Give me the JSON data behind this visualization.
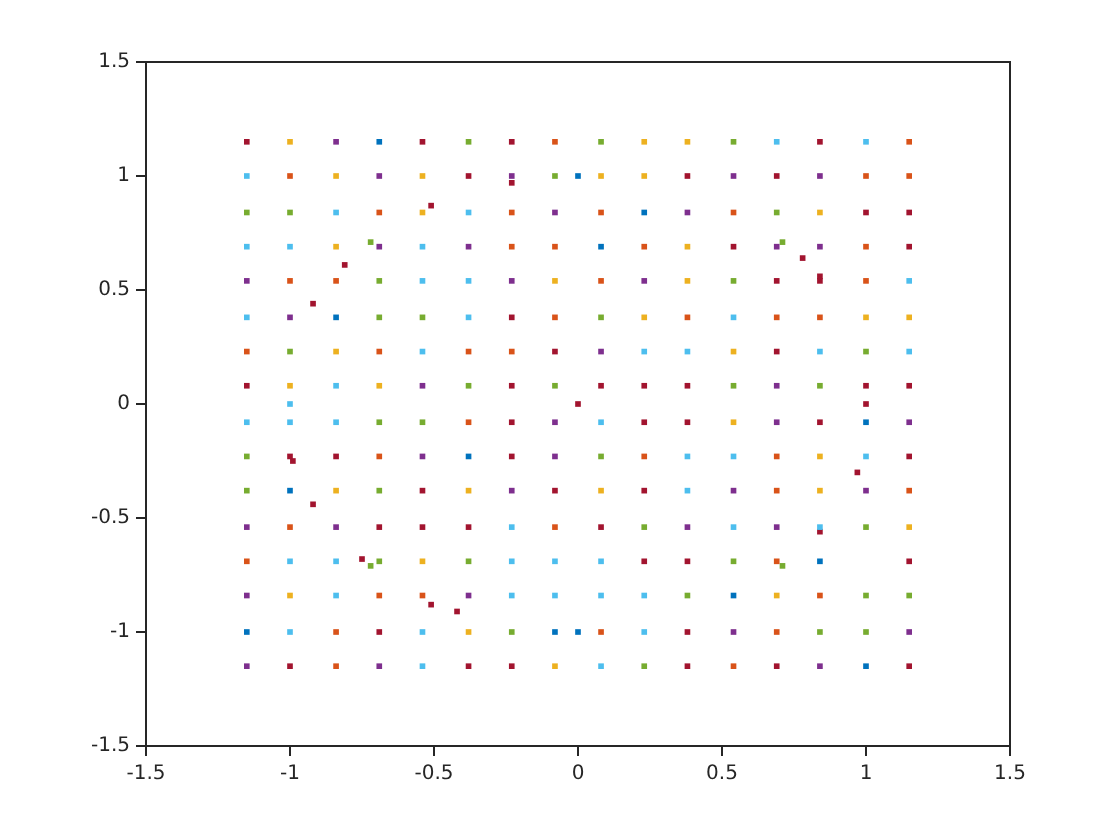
{
  "chart_data": {
    "type": "scatter",
    "marker": "square",
    "xlim": [
      -1.5,
      1.5
    ],
    "ylim": [
      -1.5,
      1.5
    ],
    "xticks": [
      -1.5,
      -1,
      -0.5,
      0,
      0.5,
      1,
      1.5
    ],
    "yticks": [
      -1.5,
      -1,
      -0.5,
      0,
      0.5,
      1,
      1.5
    ],
    "series": [
      {
        "color": "#0072bd",
        "x": [
          -0.69,
          0.23,
          0.08,
          -0.84,
          1.0,
          -0.38,
          -1.0,
          0.84,
          0.54,
          -1.15,
          -0.08,
          1.0,
          0,
          0
        ],
        "values": [
          1.15,
          0.84,
          0.69,
          0.38,
          -0.08,
          -0.23,
          -0.38,
          -0.69,
          -0.84,
          -1.0,
          -1.0,
          -1.15,
          1.0,
          -1.0
        ]
      },
      {
        "color": "#d95319",
        "x": [
          -0.08,
          1.15,
          -1.0,
          1.0,
          1.15,
          -0.69,
          -0.23,
          0.08,
          0.54,
          -0.23,
          -0.08,
          0.23,
          1.0,
          -1.0,
          -0.84,
          0.08,
          1.0,
          -0.08,
          0.38,
          0.69,
          0.84,
          -1.15,
          -0.69,
          -0.38,
          -0.23,
          -0.38,
          -0.69,
          0.23,
          0.69,
          0.69,
          1.15,
          -1.0,
          -0.08,
          -1.15,
          0.69,
          -0.69,
          -0.54,
          0.84,
          -0.84,
          0.08,
          0.69,
          -0.84,
          0.54
        ],
        "values": [
          1.15,
          1.15,
          1.0,
          1.0,
          1.0,
          0.84,
          0.84,
          0.84,
          0.84,
          0.69,
          0.69,
          0.69,
          0.69,
          0.54,
          0.54,
          0.54,
          0.54,
          0.38,
          0.38,
          0.38,
          0.38,
          0.23,
          0.23,
          0.23,
          0.23,
          -0.08,
          -0.23,
          -0.23,
          -0.23,
          -0.38,
          -0.38,
          -0.54,
          -0.54,
          -0.69,
          -0.69,
          -0.84,
          -0.84,
          -0.84,
          -1.0,
          -1.0,
          -1.0,
          -1.15,
          -1.15
        ]
      },
      {
        "color": "#edb120",
        "x": [
          -1.0,
          0.23,
          0.38,
          -0.84,
          -0.54,
          0.08,
          0.23,
          -0.54,
          0.84,
          -0.84,
          0.38,
          -0.08,
          0.38,
          0.23,
          1.0,
          1.15,
          -0.84,
          0.54,
          -1.0,
          -0.69,
          0.54,
          0.84,
          -0.84,
          -0.38,
          0.08,
          0.84,
          1.15,
          -0.54,
          -1.0,
          0.69,
          -0.38,
          -0.08
        ],
        "values": [
          1.15,
          1.15,
          1.15,
          1.0,
          1.0,
          1.0,
          1.0,
          0.84,
          0.84,
          0.69,
          0.69,
          0.54,
          0.54,
          0.38,
          0.38,
          0.38,
          0.23,
          0.23,
          0.08,
          0.08,
          -0.08,
          -0.23,
          -0.38,
          -0.38,
          -0.38,
          -0.38,
          -0.54,
          -0.69,
          -0.84,
          -0.84,
          -1.0,
          -1.15
        ]
      },
      {
        "color": "#7e2f8e",
        "x": [
          -0.84,
          -0.69,
          -0.23,
          0.54,
          0.84,
          -0.08,
          0.38,
          -0.69,
          -0.38,
          0.69,
          0.84,
          -1.15,
          -0.23,
          0.23,
          -1.0,
          0.08,
          -0.54,
          0.69,
          -0.08,
          0.69,
          1.15,
          -0.54,
          -0.08,
          -0.23,
          0.54,
          1.0,
          -1.15,
          -0.84,
          0.38,
          0.69,
          -1.15,
          -0.38,
          0.54,
          1.15,
          -1.15,
          -0.69,
          0.84
        ],
        "values": [
          1.15,
          1.0,
          1.0,
          1.0,
          1.0,
          0.84,
          0.84,
          0.69,
          0.69,
          0.69,
          0.69,
          0.54,
          0.54,
          0.54,
          0.38,
          0.23,
          0.08,
          0.08,
          -0.08,
          -0.08,
          -0.08,
          -0.23,
          -0.23,
          -0.38,
          -0.38,
          -0.38,
          -0.54,
          -0.54,
          -0.54,
          -0.54,
          -0.84,
          -0.84,
          -1.0,
          -1.0,
          -1.15,
          -1.15,
          -1.15
        ]
      },
      {
        "color": "#77ac30",
        "x": [
          -0.38,
          0.08,
          0.54,
          -0.08,
          -1.15,
          -1.0,
          0.69,
          -0.69,
          0.54,
          -0.69,
          -0.54,
          0.08,
          -1.0,
          1.0,
          -0.38,
          -0.08,
          0.54,
          0.84,
          -0.69,
          -0.54,
          -1.15,
          0.08,
          -1.15,
          -0.69,
          0.23,
          1.0,
          -0.69,
          -0.38,
          0.54,
          0.38,
          1.0,
          1.15,
          -0.23,
          0.84,
          1.0,
          0.23,
          -0.72,
          0.71,
          -0.72,
          0.71
        ],
        "values": [
          1.15,
          1.15,
          1.15,
          1.0,
          0.84,
          0.84,
          0.84,
          0.54,
          0.54,
          0.38,
          0.38,
          0.38,
          0.23,
          0.23,
          0.08,
          0.08,
          0.08,
          0.08,
          -0.08,
          -0.08,
          -0.23,
          -0.23,
          -0.38,
          -0.38,
          -0.54,
          -0.54,
          -0.69,
          -0.69,
          -0.69,
          -0.84,
          -0.84,
          -0.84,
          -1.0,
          -1.0,
          -1.0,
          -1.15,
          0.71,
          0.71,
          -0.71,
          -0.71
        ]
      },
      {
        "color": "#4dbeee",
        "x": [
          0.69,
          1.0,
          -1.15,
          -0.84,
          -0.38,
          -1.15,
          -1.0,
          -0.54,
          -0.54,
          -0.38,
          1.15,
          -1.15,
          -0.38,
          0.54,
          -0.54,
          0.23,
          0.38,
          0.84,
          1.15,
          -0.84,
          -1.15,
          -1.0,
          -0.84,
          0.08,
          0.38,
          0.54,
          1.0,
          0.38,
          -0.23,
          0.54,
          0.84,
          -1.0,
          -0.84,
          -0.23,
          -0.08,
          0.08,
          -0.84,
          -0.23,
          -0.08,
          0.08,
          0.23,
          -1.0,
          -0.54,
          0.23,
          -0.54,
          0.08,
          -1.0
        ],
        "values": [
          1.15,
          1.15,
          1.0,
          0.84,
          0.84,
          0.69,
          0.69,
          0.69,
          0.54,
          0.54,
          0.54,
          0.38,
          0.38,
          0.38,
          0.23,
          0.23,
          0.23,
          0.23,
          0.23,
          0.08,
          -0.08,
          -0.08,
          -0.08,
          -0.08,
          -0.23,
          -0.23,
          -0.23,
          -0.38,
          -0.54,
          -0.54,
          -0.54,
          -0.69,
          -0.69,
          -0.69,
          -0.69,
          -0.69,
          -0.84,
          -0.84,
          -0.84,
          -0.84,
          -0.84,
          -1.0,
          -1.0,
          -1.0,
          -1.15,
          -1.15,
          0
        ]
      },
      {
        "color": "#a2142f",
        "x": [
          -1.15,
          -0.54,
          -0.23,
          0.84,
          -0.38,
          0.38,
          0.69,
          1.0,
          1.15,
          0.54,
          1.15,
          0.69,
          0.84,
          -0.23,
          -0.08,
          0.69,
          -1.15,
          -0.23,
          0.08,
          0.23,
          0.38,
          1.0,
          1.15,
          -0.23,
          0.23,
          0.38,
          0.84,
          -1.0,
          -0.84,
          -0.23,
          1.15,
          -0.54,
          -0.08,
          0.23,
          -0.69,
          -0.54,
          -0.38,
          0.08,
          0.23,
          0.38,
          1.15,
          -0.69,
          0.38,
          -1.0,
          -0.38,
          -0.23,
          0.38,
          0.69,
          1.15,
          -0.23,
          -0.51,
          -0.81,
          -0.92,
          0.78,
          0.84,
          -0.99,
          -0.92,
          -0.75,
          -0.51,
          -0.42,
          0.97,
          0.84,
          1.0,
          0
        ],
        "values": [
          1.15,
          1.15,
          1.15,
          1.15,
          1.0,
          1.0,
          1.0,
          0.84,
          0.84,
          0.69,
          0.69,
          0.54,
          0.54,
          0.38,
          0.23,
          0.23,
          0.08,
          0.08,
          0.08,
          0.08,
          0.08,
          0.08,
          0.08,
          -0.08,
          -0.08,
          -0.08,
          -0.08,
          -0.23,
          -0.23,
          -0.23,
          -0.23,
          -0.38,
          -0.38,
          -0.38,
          -0.54,
          -0.54,
          -0.54,
          -0.54,
          -0.69,
          -0.69,
          -0.69,
          -1.0,
          -1.0,
          -1.15,
          -1.15,
          -1.15,
          -1.15,
          -1.15,
          -1.15,
          0.97,
          0.87,
          0.61,
          0.44,
          0.64,
          0.56,
          -0.25,
          -0.44,
          -0.68,
          -0.88,
          -0.91,
          -0.3,
          -0.56,
          0,
          0
        ]
      }
    ]
  }
}
